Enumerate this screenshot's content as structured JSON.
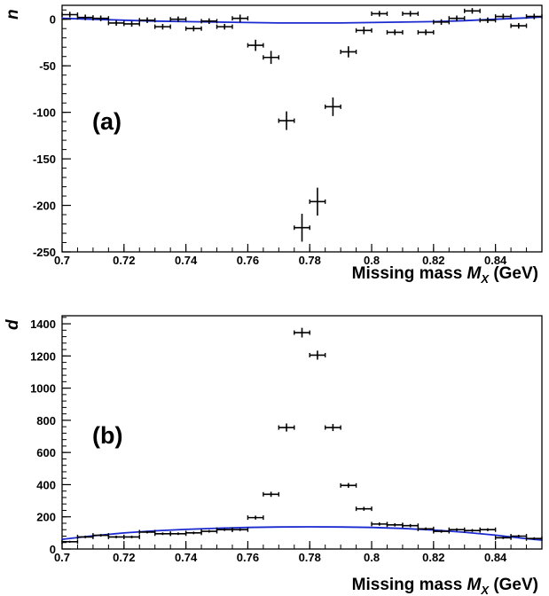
{
  "chart_data": [
    {
      "type": "scatter",
      "panel_label": "(a)",
      "ylabel": "n",
      "xlabel": "Missing mass M_X (GeV)",
      "xlim": [
        0.7,
        0.855
      ],
      "ylim": [
        -250,
        15
      ],
      "xticks": [
        "0.7",
        "0.72",
        "0.74",
        "0.76",
        "0.78",
        "0.8",
        "0.82",
        "0.84"
      ],
      "yticks": [
        "0",
        "-50",
        "-100",
        "-150",
        "-200",
        "-250"
      ],
      "series": [
        {
          "marker": "errorbar-cross",
          "color": "#000000",
          "x": [
            0.7025,
            0.7075,
            0.7125,
            0.7175,
            0.7225,
            0.7275,
            0.7325,
            0.7375,
            0.7425,
            0.7475,
            0.7525,
            0.7575,
            0.7625,
            0.7675,
            0.7725,
            0.7775,
            0.7825,
            0.7875,
            0.7925,
            0.7975,
            0.8025,
            0.8075,
            0.8125,
            0.8175,
            0.8225,
            0.8275,
            0.8325,
            0.8375,
            0.8425,
            0.8475,
            0.8525
          ],
          "y": [
            5,
            2,
            1,
            -4,
            -5,
            -1,
            -8,
            0,
            -10,
            -2,
            -8,
            1,
            -28,
            -41,
            -109,
            -224,
            -196,
            -94,
            -35,
            -12,
            6,
            -14,
            6,
            -14,
            -3,
            1,
            9,
            -1,
            3,
            -7,
            3
          ],
          "yerr": [
            3,
            3,
            3,
            3,
            3,
            3,
            3,
            3,
            3,
            3,
            3,
            4,
            6,
            7,
            10,
            15,
            15,
            10,
            6,
            4,
            3,
            3,
            3,
            3,
            3,
            3,
            3,
            3,
            3,
            3,
            3
          ]
        },
        {
          "marker": "line",
          "color": "#1a2ad0",
          "x": [
            0.7,
            0.71,
            0.72,
            0.73,
            0.74,
            0.75,
            0.76,
            0.77,
            0.78,
            0.79,
            0.8,
            0.81,
            0.82,
            0.83,
            0.84,
            0.85,
            0.855
          ],
          "y": [
            1,
            0,
            -1,
            -2,
            -2.5,
            -3,
            -3.5,
            -4,
            -4,
            -4,
            -3.5,
            -3,
            -2.5,
            -1.5,
            0,
            1.5,
            2.5
          ]
        }
      ]
    },
    {
      "type": "scatter",
      "panel_label": "(b)",
      "ylabel": "d",
      "xlabel": "Missing mass M_X (GeV)",
      "xlim": [
        0.7,
        0.855
      ],
      "ylim": [
        0,
        1450
      ],
      "xticks": [
        "0.7",
        "0.72",
        "0.74",
        "0.76",
        "0.78",
        "0.8",
        "0.82",
        "0.84"
      ],
      "yticks": [
        "0",
        "200",
        "400",
        "600",
        "800",
        "1000",
        "1200",
        "1400"
      ],
      "series": [
        {
          "marker": "errorbar-cross",
          "color": "#000000",
          "x": [
            0.7025,
            0.7075,
            0.7125,
            0.7175,
            0.7225,
            0.7275,
            0.7325,
            0.7375,
            0.7425,
            0.7475,
            0.7525,
            0.7575,
            0.7625,
            0.7675,
            0.7725,
            0.7775,
            0.7825,
            0.7875,
            0.7925,
            0.7975,
            0.8025,
            0.8075,
            0.8125,
            0.8175,
            0.8225,
            0.8275,
            0.8325,
            0.8375,
            0.8425,
            0.8475,
            0.8525
          ],
          "y": [
            45,
            75,
            85,
            75,
            75,
            105,
            95,
            95,
            100,
            110,
            120,
            120,
            195,
            340,
            755,
            1345,
            1205,
            755,
            395,
            250,
            155,
            150,
            145,
            125,
            110,
            120,
            115,
            120,
            70,
            80,
            65
          ],
          "yerr": [
            6,
            8,
            8,
            8,
            8,
            8,
            8,
            8,
            8,
            8,
            8,
            8,
            12,
            16,
            25,
            30,
            28,
            22,
            15,
            12,
            10,
            10,
            10,
            9,
            9,
            9,
            9,
            9,
            8,
            8,
            8
          ]
        },
        {
          "marker": "line",
          "color": "#1a2ad0",
          "x": [
            0.7,
            0.71,
            0.72,
            0.73,
            0.74,
            0.75,
            0.76,
            0.77,
            0.78,
            0.79,
            0.8,
            0.81,
            0.82,
            0.83,
            0.84,
            0.85,
            0.855
          ],
          "y": [
            60,
            82,
            100,
            113,
            122,
            129,
            134,
            137,
            138,
            137,
            134,
            128,
            118,
            104,
            86,
            64,
            55
          ]
        }
      ]
    }
  ]
}
